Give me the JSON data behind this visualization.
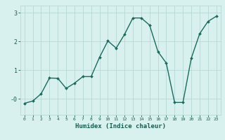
{
  "x": [
    0,
    1,
    2,
    3,
    4,
    5,
    6,
    7,
    8,
    9,
    10,
    11,
    12,
    13,
    14,
    15,
    16,
    17,
    18,
    19,
    20,
    21,
    22,
    23
  ],
  "y": [
    -0.15,
    -0.07,
    0.18,
    0.73,
    0.72,
    0.37,
    0.55,
    0.78,
    0.78,
    1.45,
    2.02,
    1.77,
    2.25,
    2.82,
    2.82,
    2.57,
    1.65,
    1.25,
    -0.12,
    -0.12,
    1.42,
    2.27,
    2.7,
    2.88
  ],
  "line_color": "#1a6b5e",
  "marker": "D",
  "markersize": 2.0,
  "linewidth": 1.0,
  "xlabel": "Humidex (Indice chaleur)",
  "xlabel_fontsize": 6.5,
  "xlabel_color": "#1a5c50",
  "bg_color": "#d8f0ee",
  "grid_color": "#b8d8d4",
  "tick_color": "#1a5c50",
  "ylim": [
    -0.55,
    3.25
  ],
  "xlim": [
    -0.5,
    23.5
  ],
  "yticks": [
    0,
    1,
    2,
    3
  ],
  "ytick_labels": [
    "-0",
    "1",
    "2",
    "3"
  ],
  "xticks": [
    0,
    1,
    2,
    3,
    4,
    5,
    6,
    7,
    8,
    9,
    10,
    11,
    12,
    13,
    14,
    15,
    16,
    17,
    18,
    19,
    20,
    21,
    22,
    23
  ],
  "xtick_fontsize": 4.5,
  "ytick_fontsize": 6.0
}
